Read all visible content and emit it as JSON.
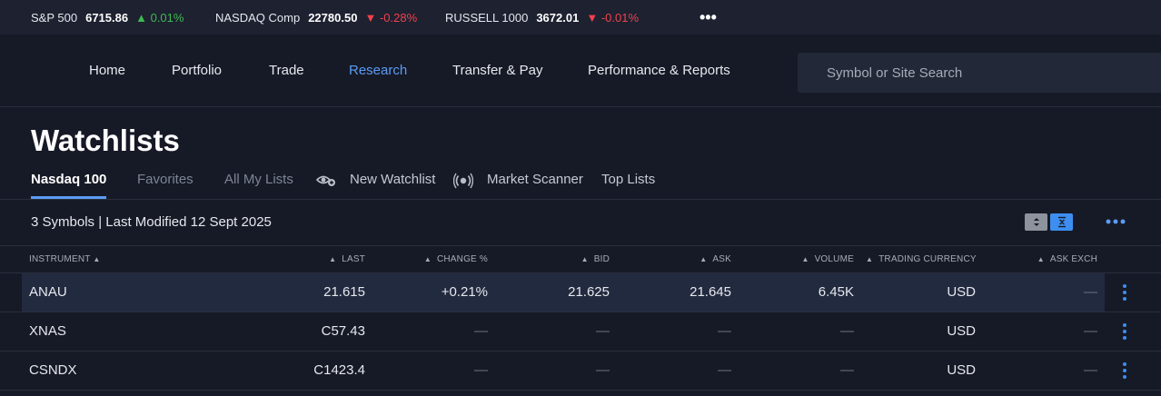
{
  "ticker": {
    "items": [
      {
        "name": "S&P 500",
        "value": "6715.86",
        "arrow": "▲",
        "change": "0.01%",
        "dir": "up"
      },
      {
        "name": "NASDAQ Comp",
        "value": "22780.50",
        "arrow": "▼",
        "change": "-0.28%",
        "dir": "down"
      },
      {
        "name": "RUSSELL 1000",
        "value": "3672.01",
        "arrow": "▼",
        "change": "-0.01%",
        "dir": "down"
      }
    ],
    "more": "•••"
  },
  "nav": {
    "items": [
      "Home",
      "Portfolio",
      "Trade",
      "Research",
      "Transfer & Pay",
      "Performance & Reports"
    ],
    "active": "Research",
    "search_placeholder": "Symbol or Site Search"
  },
  "page": {
    "title": "Watchlists"
  },
  "tabs": {
    "items": [
      "Nasdaq 100",
      "Favorites",
      "All My Lists"
    ],
    "active": "Nasdaq 100",
    "new_watchlist": "New Watchlist",
    "market_scanner": "Market Scanner",
    "top_lists": "Top Lists"
  },
  "meta": {
    "summary": "3 Symbols | Last Modified 12 Sept 2025"
  },
  "table": {
    "headers": {
      "instrument": "INSTRUMENT",
      "last": "LAST",
      "change": "CHANGE %",
      "bid": "BID",
      "ask": "ASK",
      "volume": "VOLUME",
      "currency": "TRADING CURRENCY",
      "ask_exch": "ASK EXCH"
    },
    "sort_arrow": "▲",
    "rows": [
      {
        "instrument": "ANAU",
        "last": "21.615",
        "change": "+0.21%",
        "bid": "21.625",
        "ask": "21.645",
        "volume": "6.45K",
        "currency": "USD",
        "ask_exch": "—"
      },
      {
        "instrument": "XNAS",
        "last": "C57.43",
        "change": "—",
        "bid": "—",
        "ask": "—",
        "volume": "—",
        "currency": "USD",
        "ask_exch": "—"
      },
      {
        "instrument": "CSNDX",
        "last": "C1423.4",
        "change": "—",
        "bid": "—",
        "ask": "—",
        "volume": "—",
        "currency": "USD",
        "ask_exch": "—"
      }
    ]
  },
  "colors": {
    "accent": "#5b9cf5",
    "up": "#3fb950",
    "down": "#f0424c",
    "background": "#161a26",
    "selected_row": "#222a3f"
  },
  "icons": {
    "new_watchlist": "eye-plus-icon",
    "market_scanner": "radar-icon",
    "sort_up_down": "sort-icon",
    "collapse": "collapse-icon",
    "more": "more-horizontal-icon",
    "row_menu": "more-vertical-icon"
  }
}
